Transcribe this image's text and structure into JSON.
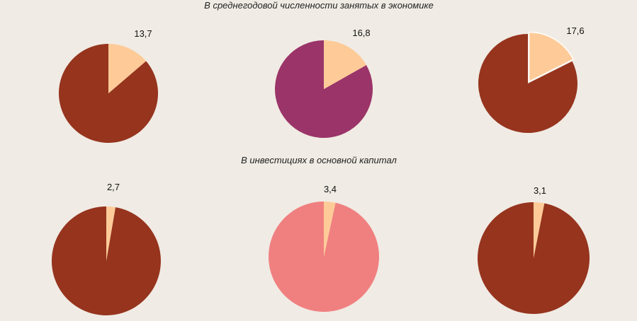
{
  "chart_data": [
    {
      "type": "pie",
      "title": "В среднегодовой численности занятых в экономике",
      "value": 13.7,
      "label": "13,7",
      "rest": 86.3,
      "colors": {
        "highlight": "#fecb98",
        "rest": "#96341e"
      }
    },
    {
      "type": "pie",
      "value": 16.8,
      "label": "16,8",
      "rest": 83.2,
      "colors": {
        "highlight": "#fecb98",
        "rest": "#9b3468"
      }
    },
    {
      "type": "pie",
      "value": 17.6,
      "label": "17,6",
      "rest": 82.4,
      "colors": {
        "highlight": "#fecb98",
        "rest": "#96341e"
      }
    },
    {
      "type": "pie",
      "title": "В инвестициях в основной капитал",
      "value": 2.7,
      "label": "2,7",
      "rest": 97.3,
      "colors": {
        "highlight": "#fecb98",
        "rest": "#96341e"
      }
    },
    {
      "type": "pie",
      "value": 3.4,
      "label": "3,4",
      "rest": 96.6,
      "colors": {
        "highlight": "#fecb98",
        "rest": "#f08080"
      }
    },
    {
      "type": "pie",
      "value": 3.1,
      "label": "3,1",
      "rest": 96.9,
      "colors": {
        "highlight": "#fecb98",
        "rest": "#96341e"
      }
    }
  ]
}
